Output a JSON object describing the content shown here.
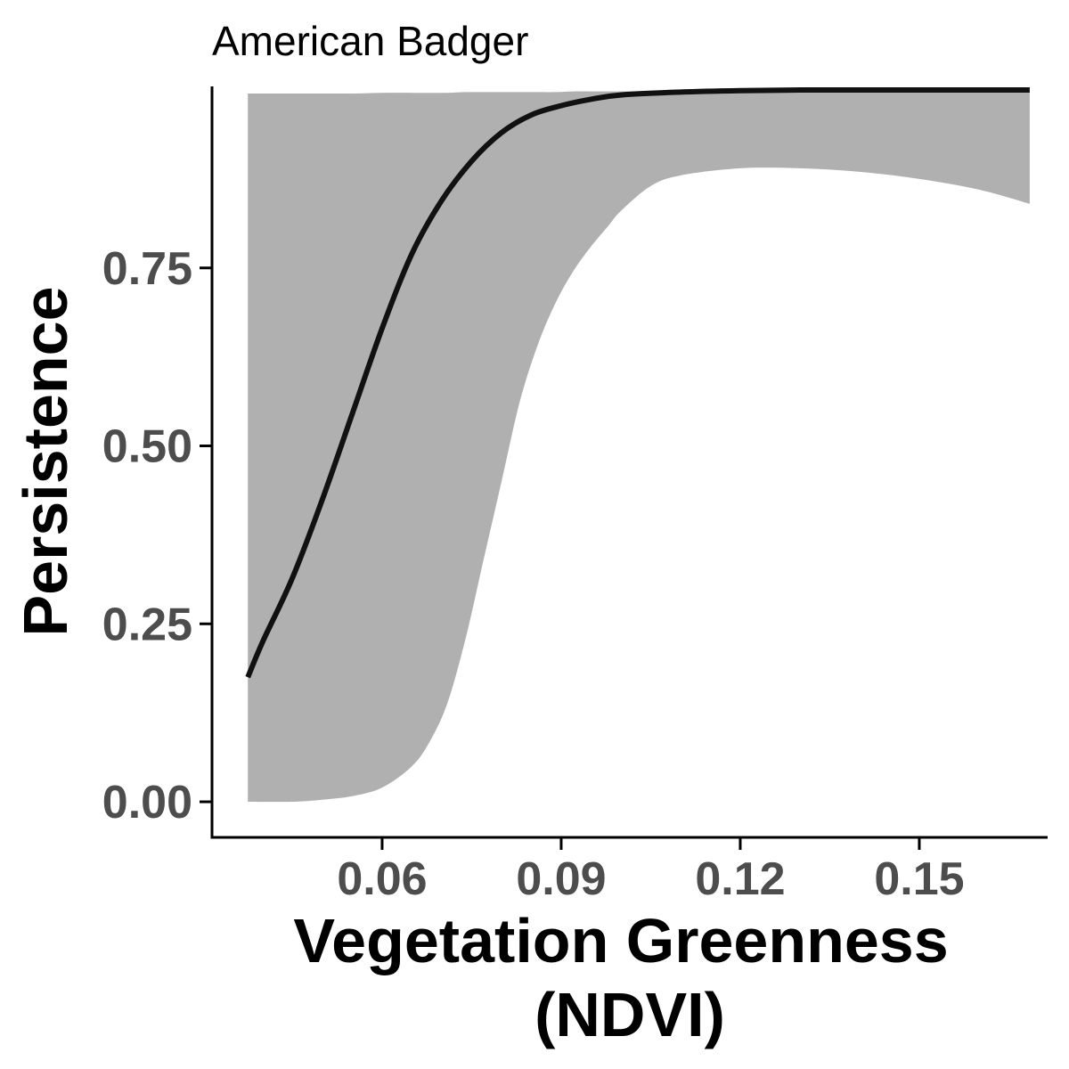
{
  "chart_data": {
    "type": "line",
    "title": "American Badger",
    "xlabel": [
      "Vegetation Greenness",
      "(NDVI)"
    ],
    "ylabel": "Persistence",
    "xlim": [
      0.0315,
      0.1715
    ],
    "ylim": [
      -0.05,
      1.005
    ],
    "x_ticks": [
      0.06,
      0.09,
      0.12,
      0.15
    ],
    "x_tick_labels": [
      "0.06",
      "0.09",
      "0.12",
      "0.15"
    ],
    "y_ticks": [
      0.0,
      0.25,
      0.5,
      0.75
    ],
    "y_tick_labels": [
      "0.00",
      "0.25",
      "0.50",
      "0.75"
    ],
    "grid": false,
    "colors": {
      "line": "#111111",
      "ribbon": "#b0b0b0",
      "axis": "#000000",
      "tick_label": "#4d4d4d"
    },
    "series": [
      {
        "type": "ribbon",
        "x": [
          0.0375,
          0.045,
          0.05,
          0.055,
          0.06,
          0.065,
          0.068,
          0.071,
          0.074,
          0.077,
          0.08,
          0.083,
          0.086,
          0.089,
          0.092,
          0.095,
          0.098,
          0.1,
          0.105,
          0.11,
          0.12,
          0.13,
          0.14,
          0.15,
          0.16,
          0.1685
        ],
        "lower": [
          0.0,
          0.0,
          0.003,
          0.008,
          0.02,
          0.05,
          0.085,
          0.14,
          0.23,
          0.34,
          0.45,
          0.56,
          0.64,
          0.7,
          0.745,
          0.78,
          0.81,
          0.83,
          0.865,
          0.88,
          0.89,
          0.89,
          0.885,
          0.875,
          0.86,
          0.84
        ],
        "upper": [
          0.995,
          0.995,
          0.995,
          0.995,
          0.996,
          0.996,
          0.996,
          0.996,
          0.997,
          0.997,
          0.997,
          0.997,
          0.997,
          0.997,
          0.998,
          0.998,
          0.998,
          0.998,
          0.998,
          0.998,
          0.998,
          0.998,
          0.998,
          0.998,
          0.998,
          0.998
        ]
      },
      {
        "type": "line",
        "x": [
          0.0375,
          0.04,
          0.045,
          0.05,
          0.055,
          0.06,
          0.065,
          0.07,
          0.075,
          0.08,
          0.085,
          0.09,
          0.095,
          0.1,
          0.11,
          0.12,
          0.13,
          0.14,
          0.15,
          0.16,
          0.1685
        ],
        "y": [
          0.175,
          0.225,
          0.315,
          0.425,
          0.545,
          0.665,
          0.77,
          0.845,
          0.9,
          0.94,
          0.965,
          0.978,
          0.987,
          0.993,
          0.997,
          0.999,
          1.0,
          1.0,
          1.0,
          1.0,
          1.0
        ]
      }
    ]
  }
}
